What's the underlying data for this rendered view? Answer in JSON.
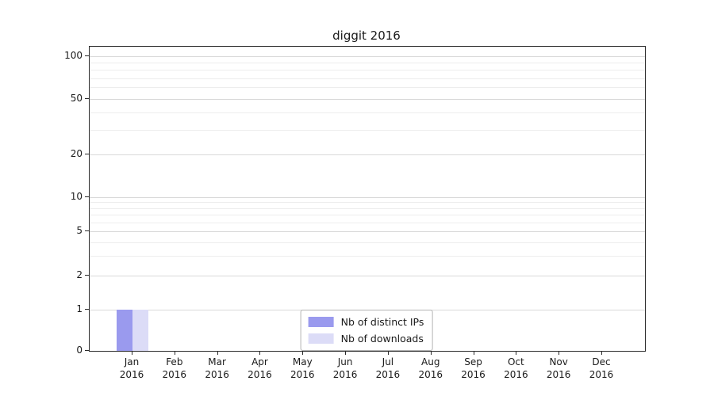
{
  "chart_data": {
    "type": "bar",
    "title": "diggit 2016",
    "categories": [
      "Jan 2016",
      "Feb 2016",
      "Mar 2016",
      "Apr 2016",
      "May 2016",
      "Jun 2016",
      "Jul 2016",
      "Aug 2016",
      "Sep 2016",
      "Oct 2016",
      "Nov 2016",
      "Dec 2016"
    ],
    "series": [
      {
        "name": "Nb of distinct IPs",
        "color": "#9a9aee",
        "values": [
          1,
          0,
          0,
          0,
          0,
          0,
          0,
          0,
          0,
          0,
          0,
          0
        ]
      },
      {
        "name": "Nb of downloads",
        "color": "#dcdcf7",
        "values": [
          1,
          0,
          0,
          0,
          0,
          0,
          0,
          0,
          0,
          0,
          0,
          0
        ]
      }
    ],
    "yscale": "symlog",
    "yticks": [
      0,
      1,
      2,
      5,
      10,
      20,
      50,
      100
    ],
    "minor_yticks": [
      3,
      4,
      6,
      7,
      8,
      9,
      30,
      40,
      60,
      70,
      80,
      90
    ],
    "ylim": [
      0,
      120
    ],
    "xlabel": "",
    "ylabel": "",
    "grid": "horizontal",
    "legend_position": "lower center inside"
  }
}
